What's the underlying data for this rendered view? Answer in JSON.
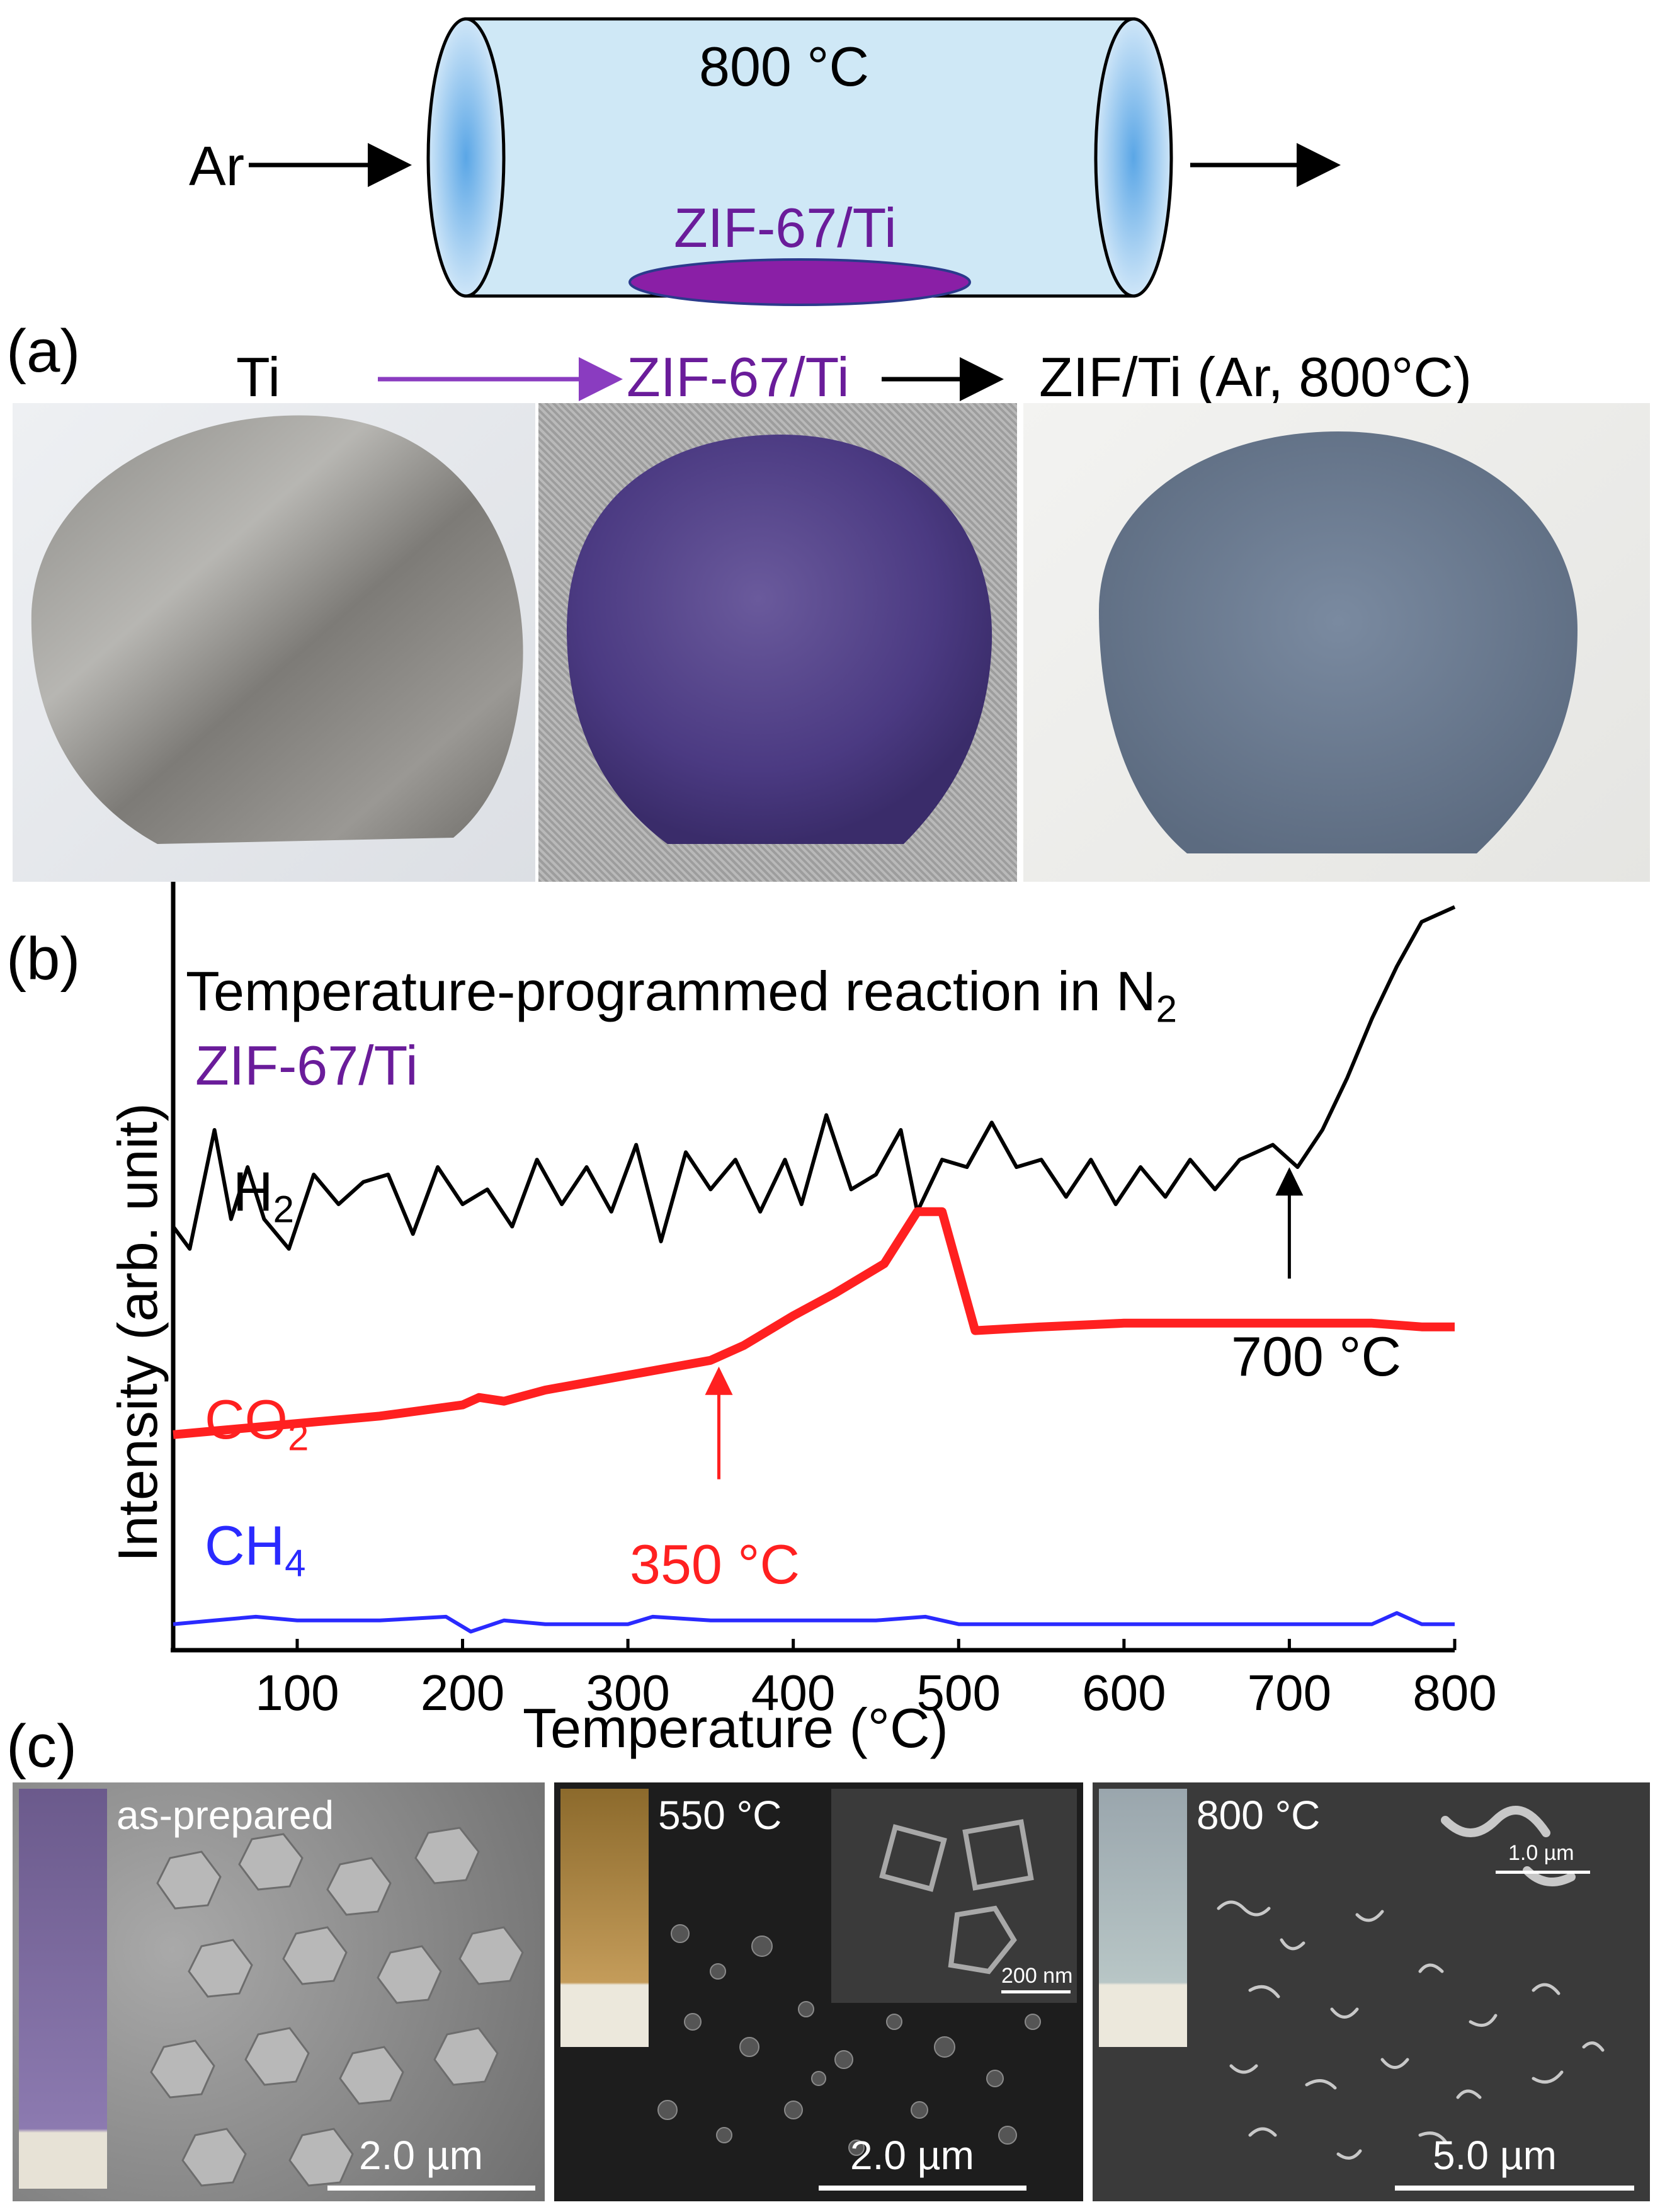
{
  "colors": {
    "black": "#000000",
    "red": "#ff2020",
    "blue": "#2a2aff",
    "purple": "#6a1c9a",
    "arrow_purple": "#8a3cc0",
    "tube_fill": "#cfe8f6",
    "tube_end": "#8ec4ec"
  },
  "schematic": {
    "temperature_label": "800 °C",
    "gas_in_label": "Ar",
    "sample_label": "ZIF-67/Ti"
  },
  "panel_a": {
    "letter": "(a)",
    "label_ti": "Ti",
    "label_zif": "ZIF-67/Ti",
    "label_result": "ZIF/Ti (Ar, 800°C)"
  },
  "panel_b": {
    "letter": "(b)",
    "title": "Temperature-programmed reaction in N",
    "title_subscript": "2",
    "sample_label": "ZIF-67/Ti",
    "annotation_700": "700 °C",
    "annotation_350": "350 °C"
  },
  "chart_data": {
    "type": "line",
    "title": "Temperature-programmed reaction in N2",
    "xlabel": "Temperature (°C)",
    "ylabel": "Intensity (arb. unit)",
    "xlim": [
      25,
      800
    ],
    "ylim": [
      0,
      100
    ],
    "x_ticks": [
      100,
      200,
      300,
      400,
      500,
      600,
      700,
      800
    ],
    "series": [
      {
        "name": "H2",
        "label": "H",
        "label_sub": "2",
        "color": "#000000",
        "x": [
          25,
          35,
          50,
          60,
          70,
          80,
          95,
          110,
          125,
          140,
          155,
          170,
          185,
          200,
          215,
          230,
          245,
          260,
          275,
          290,
          305,
          320,
          335,
          350,
          365,
          380,
          395,
          405,
          420,
          435,
          450,
          465,
          475,
          490,
          505,
          520,
          535,
          550,
          565,
          580,
          595,
          610,
          625,
          640,
          655,
          670,
          690,
          705,
          720,
          735,
          750,
          765,
          780,
          800
        ],
        "y": [
          57,
          54,
          70,
          58,
          65,
          58,
          54,
          64,
          60,
          63,
          64,
          56,
          65,
          60,
          62,
          57,
          66,
          60,
          65,
          59,
          68,
          55,
          67,
          62,
          66,
          59,
          66,
          60,
          72,
          62,
          64,
          70,
          59,
          66,
          65,
          71,
          65,
          66,
          61,
          66,
          60,
          65,
          61,
          66,
          62,
          66,
          68,
          65,
          70,
          77,
          85,
          92,
          98,
          100
        ]
      },
      {
        "name": "CO2",
        "label": "CO",
        "label_sub": "2",
        "color": "#ff2020",
        "x": [
          25,
          50,
          100,
          150,
          200,
          210,
          225,
          250,
          300,
          350,
          370,
          400,
          425,
          455,
          475,
          490,
          510,
          550,
          600,
          650,
          700,
          750,
          780,
          800
        ],
        "y": [
          29,
          29.5,
          30.5,
          31.5,
          33,
          34,
          33.5,
          35,
          37,
          39,
          41,
          45,
          48,
          52,
          59,
          59,
          43,
          43.5,
          44,
          44,
          44,
          44,
          43.5,
          43.5
        ]
      },
      {
        "name": "CH4",
        "label": "CH",
        "label_sub": "4",
        "color": "#2a2aff",
        "x": [
          25,
          50,
          75,
          100,
          150,
          190,
          205,
          225,
          250,
          300,
          315,
          350,
          400,
          450,
          480,
          500,
          550,
          600,
          650,
          700,
          750,
          765,
          780,
          800
        ],
        "y": [
          3.5,
          4,
          4.5,
          4,
          4,
          4.5,
          2.5,
          4,
          3.5,
          3.5,
          4.5,
          4,
          4,
          4,
          4.5,
          3.5,
          3.5,
          3.5,
          3.5,
          3.5,
          3.5,
          5,
          3.5,
          3.5
        ]
      }
    ]
  },
  "panel_c": {
    "letter": "(c)",
    "images": [
      {
        "label": "as-prepared",
        "scale": "2.0 µm"
      },
      {
        "label": "550 °C",
        "scale": "2.0 µm",
        "inset_scale": "200 nm"
      },
      {
        "label": "800 °C",
        "scale": "5.0 µm",
        "inset_scale": "1.0 µm"
      }
    ]
  }
}
